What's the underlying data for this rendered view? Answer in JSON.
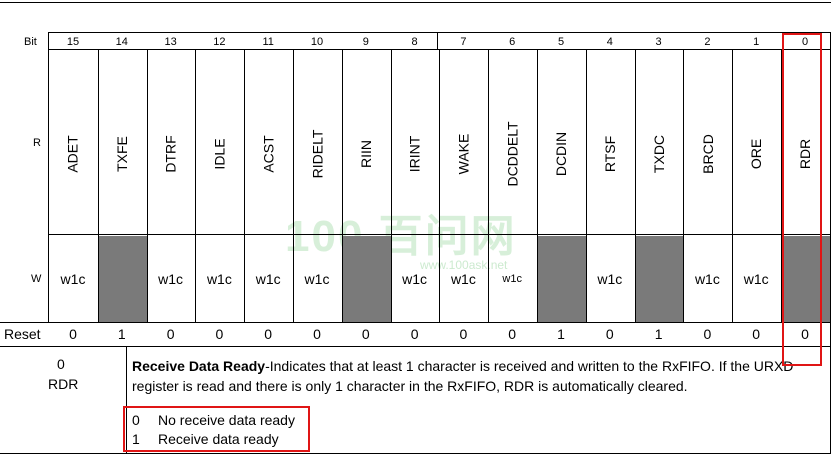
{
  "row_labels": {
    "bit": "Bit",
    "r": "R",
    "w": "W",
    "reset": "Reset"
  },
  "bits": [
    {
      "num": "15",
      "field": "ADET",
      "w": "w1c",
      "reset": "0"
    },
    {
      "num": "14",
      "field": "TXFE",
      "w": "",
      "reset": "1"
    },
    {
      "num": "13",
      "field": "DTRF",
      "w": "w1c",
      "reset": "0"
    },
    {
      "num": "12",
      "field": "IDLE",
      "w": "w1c",
      "reset": "0"
    },
    {
      "num": "11",
      "field": "ACST",
      "w": "w1c",
      "reset": "0"
    },
    {
      "num": "10",
      "field": "RIDELT",
      "w": "w1c",
      "reset": "0"
    },
    {
      "num": "9",
      "field": "RIIN",
      "w": "",
      "reset": "0"
    },
    {
      "num": "8",
      "field": "IRINT",
      "w": "w1c",
      "reset": "0"
    },
    {
      "num": "7",
      "field": "WAKE",
      "w": "w1c",
      "reset": "0"
    },
    {
      "num": "6",
      "field": "DCDDELT",
      "w": "w1c",
      "reset": "0"
    },
    {
      "num": "5",
      "field": "DCDIN",
      "w": "",
      "reset": "1"
    },
    {
      "num": "4",
      "field": "RTSF",
      "w": "w1c",
      "reset": "0"
    },
    {
      "num": "3",
      "field": "TXDC",
      "w": "",
      "reset": "1"
    },
    {
      "num": "2",
      "field": "BRCD",
      "w": "w1c",
      "reset": "0"
    },
    {
      "num": "1",
      "field": "ORE",
      "w": "w1c",
      "reset": "0"
    },
    {
      "num": "0",
      "field": "RDR",
      "w": "",
      "reset": "0"
    }
  ],
  "description": {
    "bit_num": "0",
    "bit_name": "RDR",
    "title": "Receive Data Ready",
    "text": "-Indicates that at least 1 character is received and written to the RxFIFO. If the URXD register is read and there is only 1 character in the RxFIFO, RDR is automatically cleared.",
    "options": [
      {
        "value": "0",
        "label": "No receive data ready"
      },
      {
        "value": "1",
        "label": "Receive data ready"
      }
    ]
  },
  "watermark": {
    "main": "100 百问网",
    "url": "www.100ask.net"
  },
  "colors": {
    "highlight": "#e01515",
    "shade": "#7a7a7a"
  }
}
